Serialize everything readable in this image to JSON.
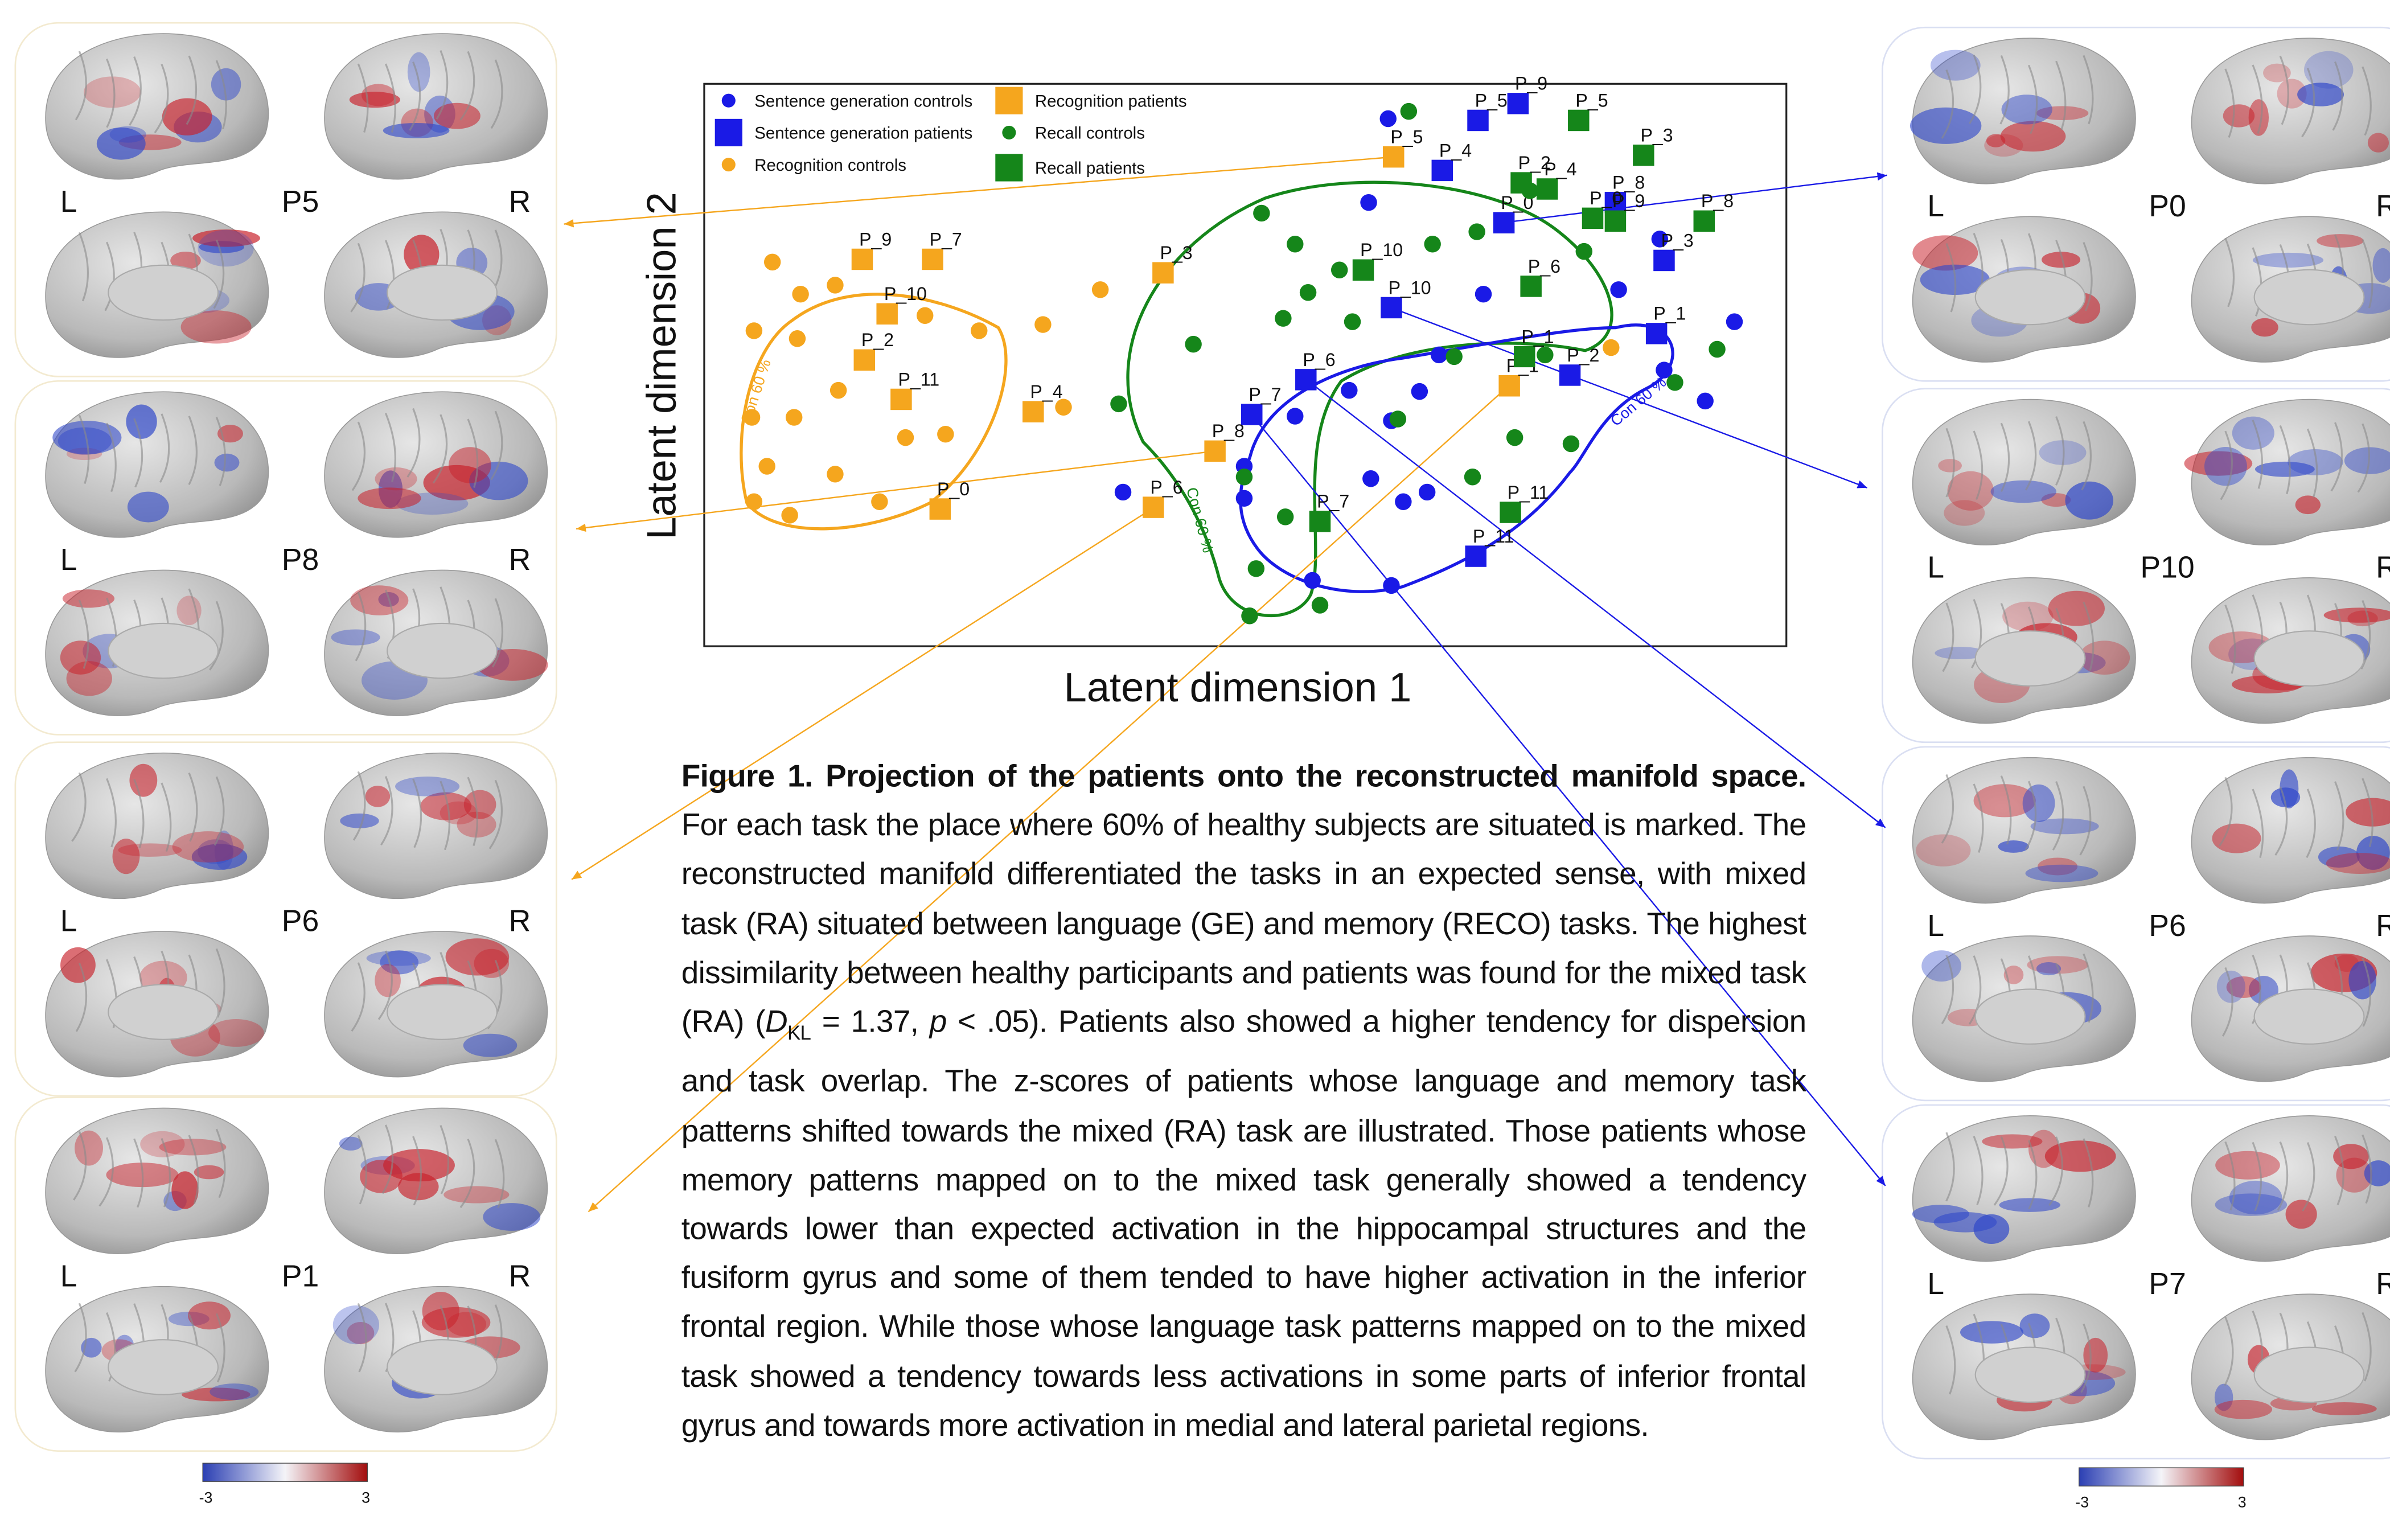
{
  "chart_data": {
    "type": "scatter",
    "x_label": "Latent dimension 1",
    "y_label": "Latent dimension 2",
    "xlim": [
      0,
      100
    ],
    "ylim": [
      0,
      100
    ],
    "annotations": [
      "Con 60 %",
      "Con 60 %",
      "Con 60 %"
    ],
    "series": [
      {
        "name": "Sentence generation controls",
        "color": "#1a1ae6",
        "marker": "circle",
        "x": [
          63.2,
          61.4,
          88.3,
          84.5,
          95.2,
          88.7,
          92.5,
          72.0,
          67.9,
          66.1,
          54.6,
          59.6,
          63.5,
          49.9,
          49.9,
          38.7,
          61.6,
          64.6,
          66.8,
          56.2,
          63.5
        ],
        "values": [
          93.8,
          78.9,
          72.4,
          63.4,
          57.7,
          49.1,
          43.6,
          62.6,
          51.8,
          45.3,
          40.9,
          45.5,
          40.1,
          32.0,
          26.3,
          27.4,
          29.8,
          25.7,
          27.4,
          11.7,
          10.8
        ]
      },
      {
        "name": "Sentence generation patients",
        "color": "#1a1ae6",
        "marker": "square",
        "point_labels": [
          "P_9",
          "P_5",
          "P_4",
          "P_0",
          "P_8",
          "P_3",
          "P_10",
          "P_1",
          "P_2",
          "P_6",
          "P_7",
          "P_11"
        ],
        "x": [
          75.2,
          71.5,
          68.2,
          73.9,
          84.2,
          88.7,
          63.5,
          88.0,
          80.0,
          55.6,
          50.6,
          71.3
        ],
        "values": [
          96.5,
          93.5,
          84.6,
          75.3,
          78.9,
          68.6,
          60.2,
          55.6,
          48.2,
          47.4,
          41.2,
          16.0
        ]
      },
      {
        "name": "Recognition controls",
        "color": "#f5a61e",
        "marker": "circle",
        "x": [
          6.3,
          8.9,
          12.1,
          4.6,
          8.6,
          12.4,
          8.3,
          4.4,
          5.8,
          4.6,
          7.9,
          12.1,
          16.2,
          18.6,
          22.3,
          20.4,
          25.4,
          31.3,
          36.6,
          33.2,
          83.8
        ],
        "values": [
          68.3,
          62.6,
          64.2,
          56.1,
          54.7,
          45.5,
          40.7,
          40.7,
          32.0,
          25.7,
          23.3,
          30.6,
          25.7,
          37.1,
          37.7,
          58.8,
          56.1,
          57.2,
          63.4,
          42.5,
          53.1
        ]
      },
      {
        "name": "Recognition patients",
        "color": "#f5a61e",
        "marker": "square",
        "point_labels": [
          "P_9",
          "P_7",
          "P_10",
          "P_2",
          "P_11",
          "P_0",
          "P_4",
          "P_3",
          "P_5",
          "P_8",
          "P_6",
          "P_1"
        ],
        "x": [
          14.6,
          21.1,
          16.9,
          14.8,
          18.2,
          21.8,
          30.4,
          42.4,
          63.7,
          47.2,
          41.5,
          74.4
        ],
        "values": [
          68.8,
          68.8,
          59.1,
          50.9,
          43.9,
          24.4,
          41.7,
          66.4,
          87.0,
          34.7,
          24.7,
          46.3
        ]
      },
      {
        "name": "Recall controls",
        "color": "#15861a",
        "marker": "circle",
        "x": [
          65.1,
          76.3,
          51.5,
          54.6,
          67.3,
          71.4,
          81.3,
          58.7,
          55.8,
          53.5,
          59.9,
          45.2,
          69.3,
          77.7,
          93.6,
          89.7,
          38.3,
          64.1,
          74.9,
          80.1,
          71.0,
          49.9,
          53.7,
          51.0,
          56.9,
          50.4
        ],
        "values": [
          95.1,
          81.0,
          77.0,
          71.5,
          71.5,
          73.7,
          70.2,
          66.9,
          62.9,
          58.3,
          57.7,
          53.7,
          51.5,
          51.8,
          52.8,
          46.9,
          43.1,
          40.4,
          37.1,
          36.0,
          30.1,
          30.1,
          23.0,
          13.8,
          7.3,
          5.4
        ]
      },
      {
        "name": "Recall patients",
        "color": "#15861a",
        "marker": "square",
        "point_labels": [
          "P_5",
          "P_3",
          "P_2",
          "P_4",
          "P_0",
          "P_9",
          "P_6",
          "P_10",
          "P_8",
          "P_1",
          "P_11",
          "P_7"
        ],
        "x": [
          80.8,
          86.8,
          75.5,
          77.9,
          82.1,
          84.2,
          76.4,
          60.9,
          92.4,
          75.8,
          74.5,
          56.9
        ],
        "values": [
          93.5,
          87.3,
          82.4,
          81.3,
          76.1,
          75.6,
          64.0,
          66.9,
          75.6,
          51.5,
          23.8,
          22.2
        ]
      }
    ]
  },
  "left_panels": [
    {
      "left": "L",
      "name": "P5",
      "right": "R"
    },
    {
      "left": "L",
      "name": "P8",
      "right": "R"
    },
    {
      "left": "L",
      "name": "P6",
      "right": "R"
    },
    {
      "left": "L",
      "name": "P1",
      "right": "R"
    }
  ],
  "right_panels": [
    {
      "left": "L",
      "name": "P0",
      "right": "R"
    },
    {
      "left": "L",
      "name": "P10",
      "right": "R"
    },
    {
      "left": "L",
      "name": "P6",
      "right": "R"
    },
    {
      "left": "L",
      "name": "P7",
      "right": "R"
    }
  ],
  "colorbars": [
    {
      "min": -3,
      "max": 3
    },
    {
      "min": -3,
      "max": 3
    }
  ],
  "caption": {
    "label": "Figure 1. Projection of the patients onto the reconstructed manifold space.",
    "text_1": " For each task the place where 60% of healthy subjects are situated is marked. The reconstructed manifold differentiated the tasks in an expected sense, with mixed task (RA) situated between language (GE) and memory (RECO) tasks. The highest dissimilarity between healthy participants and patients was found for the mixed task (RA) (",
    "d": "D",
    "kl": "KL",
    "text_2": " = 1.37, ",
    "p": "p",
    "text_3": " < .05). Patients also showed a higher tendency for dispersion and task overlap. The z-scores of patients whose language and memory task patterns shifted towards the mixed (RA) task are illustrated. Those patients whose memory patterns mapped on to the mixed task generally showed a tendency towards lower than expected activation in the hippocampal structures and the fusiform gyrus and some of them tended to have higher activation in the inferior frontal region. While those whose language task patterns mapped on to the mixed task showed a tendency towards less activations in some parts of inferior frontal gyrus and towards more activation in medial and lateral parietal regions."
  }
}
